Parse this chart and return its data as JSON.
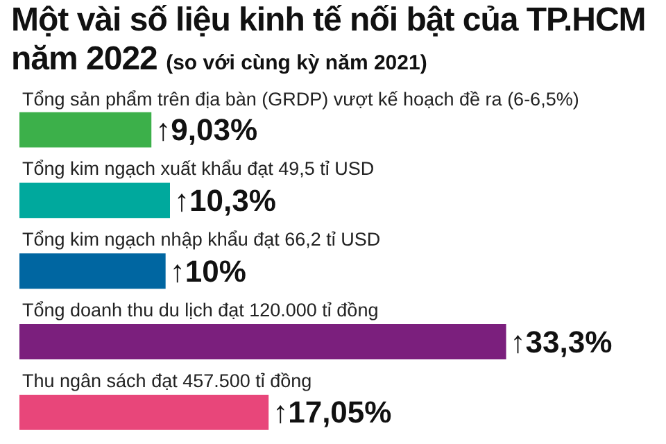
{
  "chart_data": {
    "type": "bar",
    "orientation": "horizontal",
    "title": "Một vài số liệu kinh tế nối bật của TP.HCM năm 2022",
    "subtitle": "(so với cùng kỳ năm 2021)",
    "categories": [
      "Tổng sản phẩm trên địa bàn (GRDP) vượt kế hoạch đề ra (6-6,5%)",
      "Tổng kim ngạch xuất khẩu đạt 49,5 tỉ USD",
      "Tổng kim ngạch nhập khẩu đạt 66,2 tỉ USD",
      "Tổng doanh thu du lịch đạt 120.000 tỉ đồng",
      "Thu ngân sách đạt 457.500 tỉ đồng"
    ],
    "values": [
      9.03,
      10.3,
      10,
      33.3,
      17.05
    ],
    "colors": [
      "#3cb04a",
      "#00a99d",
      "#0066a1",
      "#7b1f7d",
      "#e8467a"
    ],
    "value_labels": [
      "↑9,03%",
      "↑10,3%",
      "↑10%",
      "↑33,3%",
      "↑17,05%"
    ]
  }
}
